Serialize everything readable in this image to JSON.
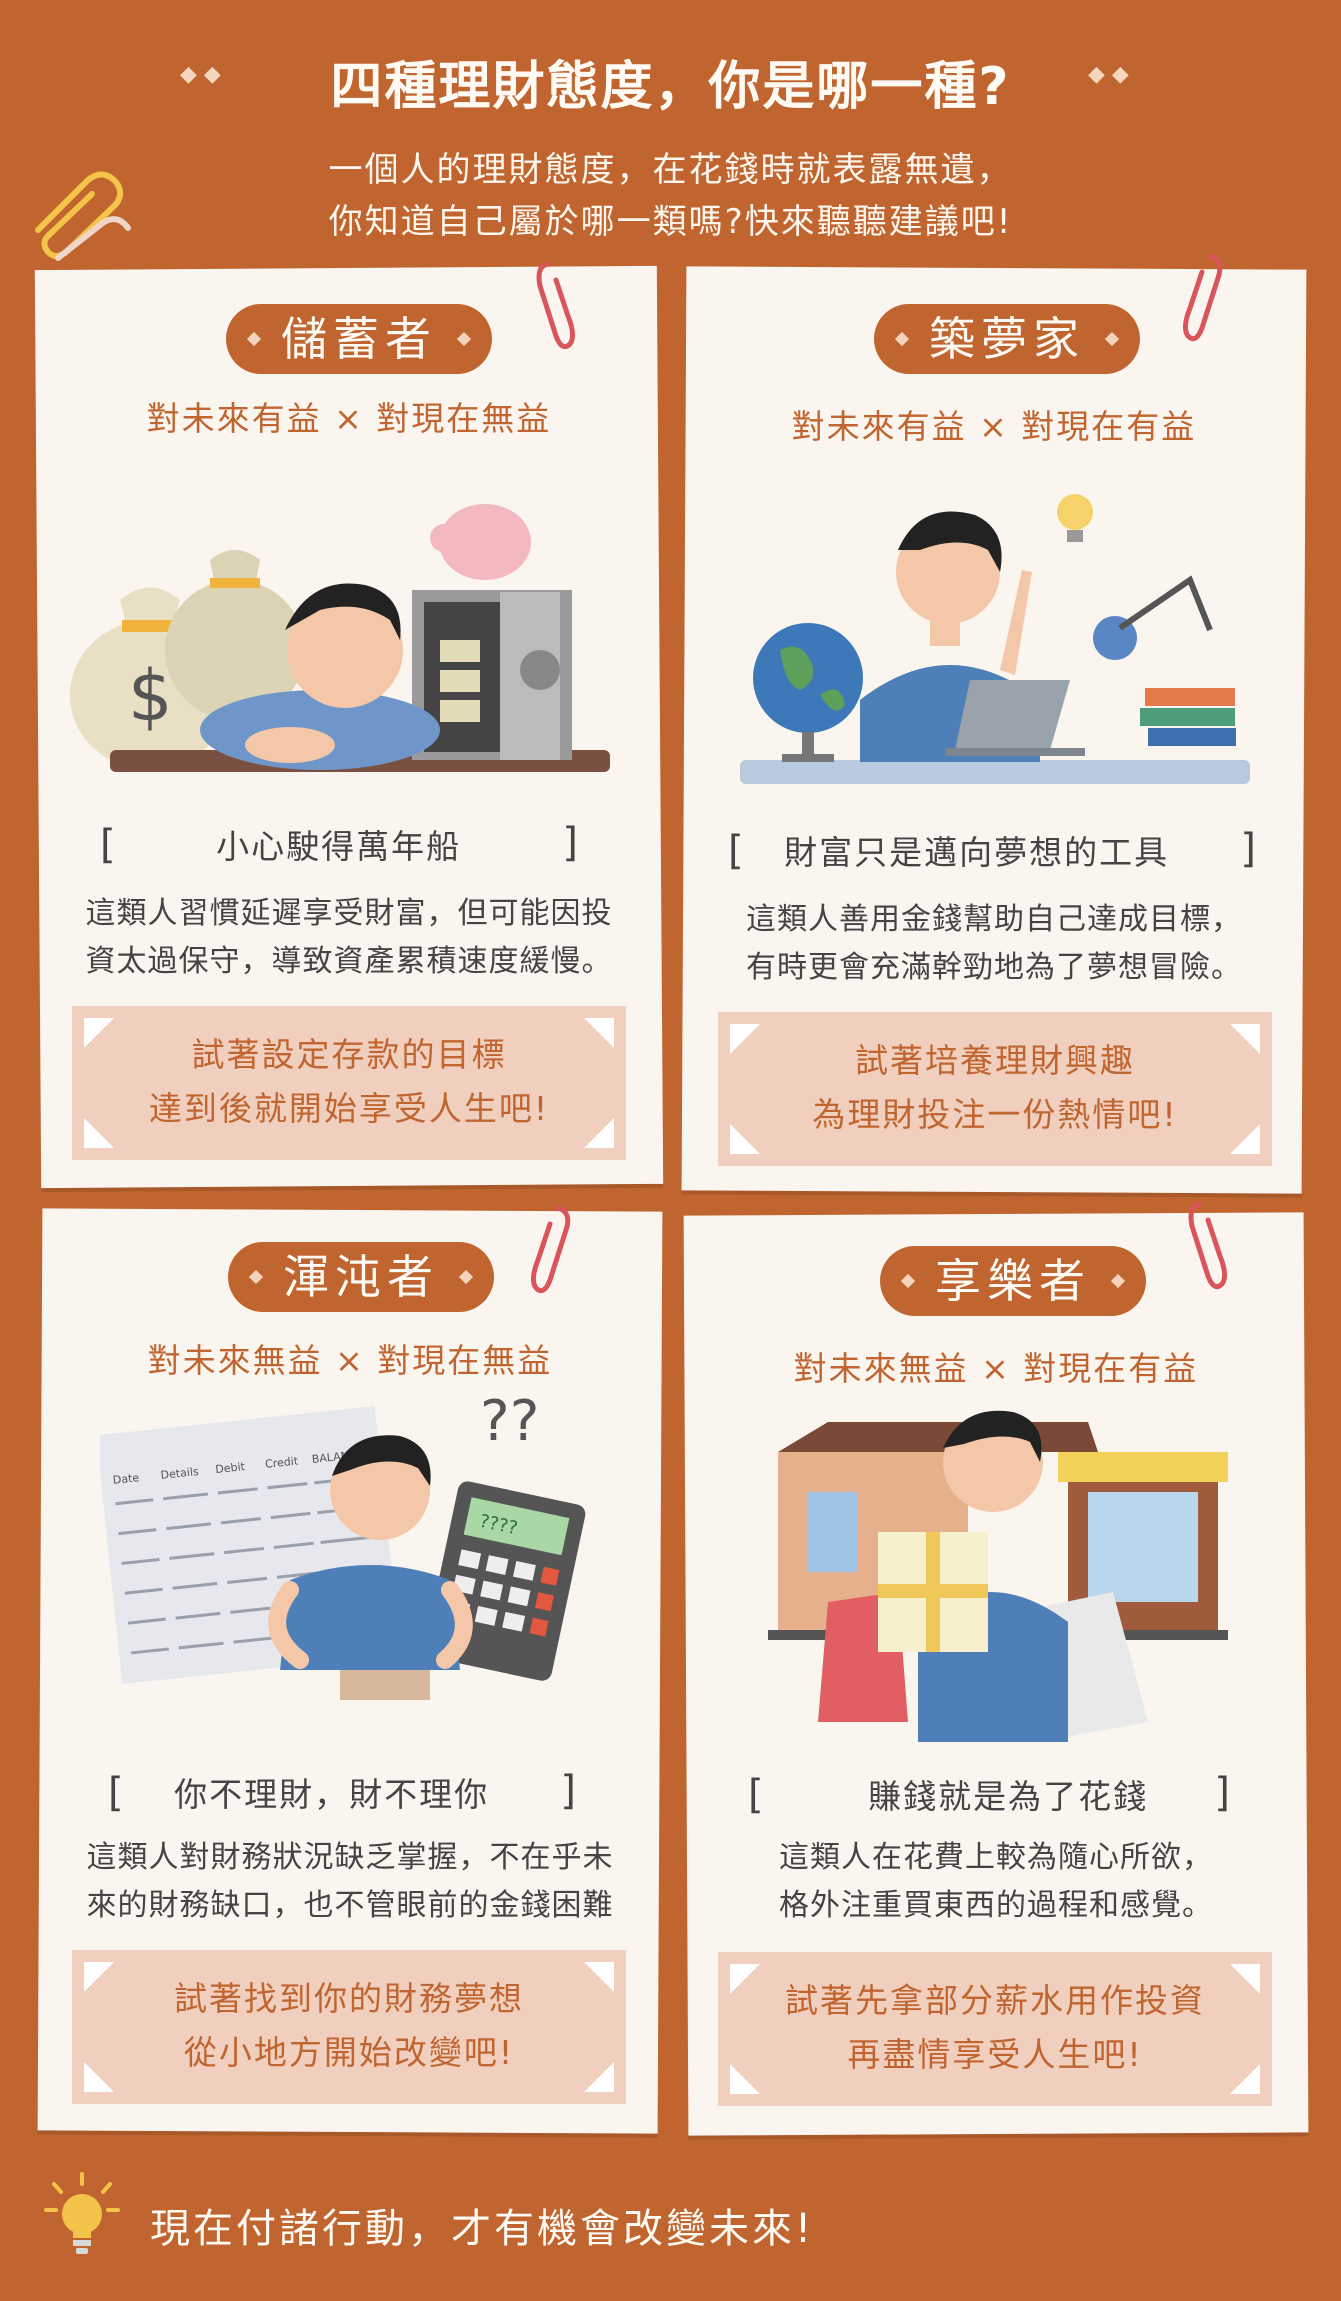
{
  "header": {
    "title": "四種理財態度，你是哪一種?",
    "subtitle_line1": "一個人的理財態度，在花錢時就表露無遺，",
    "subtitle_line2": "你知道自己屬於哪一類嗎?快來聽聽建議吧!"
  },
  "cards": [
    {
      "name": "儲蓄者",
      "tag": "對未來有益 × 對現在無益",
      "motto": "小心駛得萬年船",
      "desc_line1": "這類人習慣延遲享受財富，但可能因投",
      "desc_line2": "資太過保守，導致資產累積速度緩慢。",
      "tip_line1": "試著設定存款的目標",
      "tip_line2": "達到後就開始享受人生吧!"
    },
    {
      "name": "築夢家",
      "tag": "對未來有益 × 對現在有益",
      "motto": "財富只是邁向夢想的工具",
      "desc_line1": "這類人善用金錢幫助自己達成目標，",
      "desc_line2": "有時更會充滿幹勁地為了夢想冒險。",
      "tip_line1": "試著培養理財興趣",
      "tip_line2": "為理財投注一份熱情吧!"
    },
    {
      "name": "渾沌者",
      "tag": "對未來無益 × 對現在無益",
      "motto": "你不理財，財不理你",
      "desc_line1": "這類人對財務狀況缺乏掌握，不在乎未",
      "desc_line2": "來的財務缺口，也不管眼前的金錢困難",
      "tip_line1": "試著找到你的財務夢想",
      "tip_line2": "從小地方開始改變吧!"
    },
    {
      "name": "享樂者",
      "tag": "對未來無益 × 對現在有益",
      "motto": "賺錢就是為了花錢",
      "desc_line1": "這類人在花費上較為隨心所欲，",
      "desc_line2": "格外注重買東西的過程和感覺。",
      "tip_line1": "試著先拿部分薪水用作投資",
      "tip_line2": "再盡情享受人生吧!"
    }
  ],
  "footer": {
    "text": "現在付諸行動，才有機會改變未來!"
  },
  "illustration_text": {
    "dollar": "$",
    "question": "??",
    "ledger_headers": [
      "Date",
      "Details",
      "Debit",
      "Credit",
      "BALANCE"
    ],
    "calc_display": "????"
  },
  "colors": {
    "background": "#c0652f",
    "card": "#faf5ef",
    "accent": "#c0652f",
    "tip_box": "#f1cfbe"
  }
}
